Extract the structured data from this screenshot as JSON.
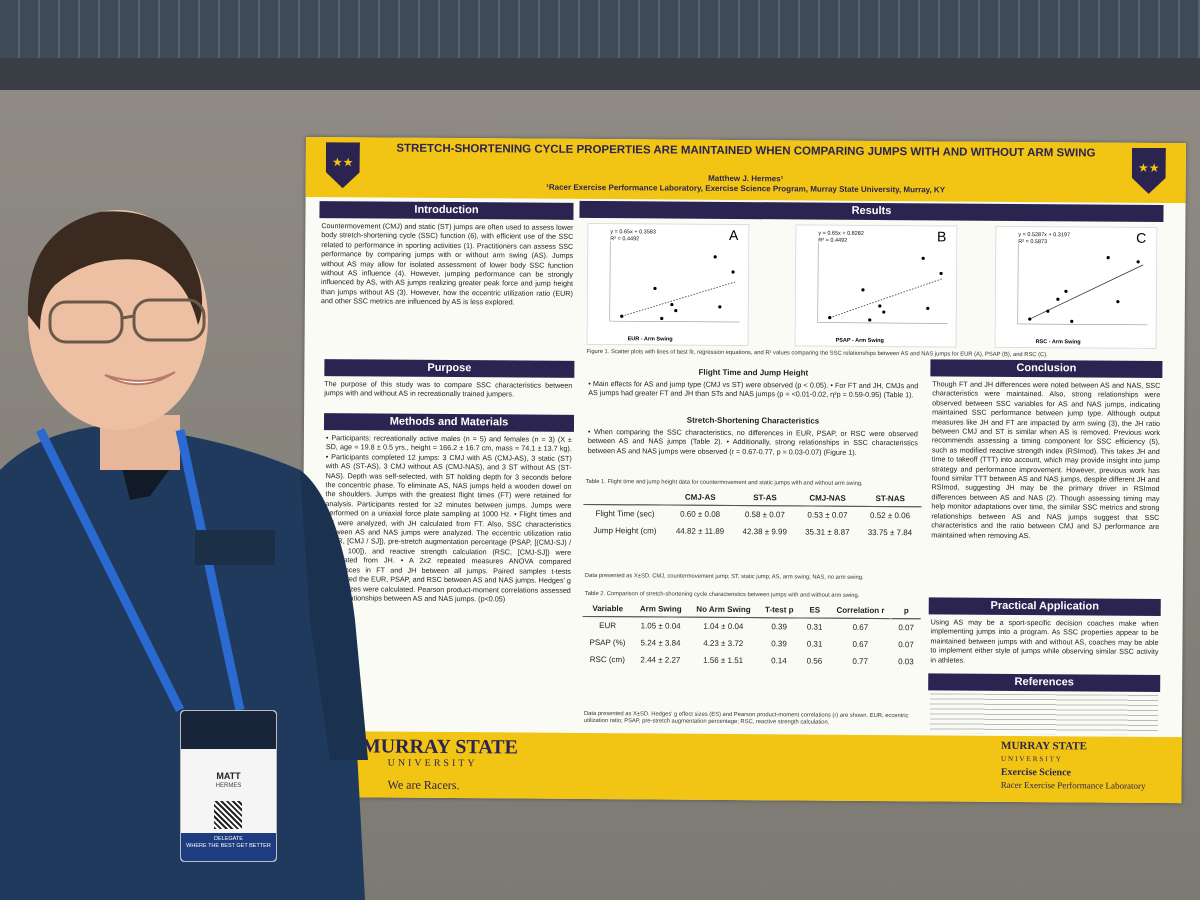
{
  "poster": {
    "title": "STRETCH-SHORTENING CYCLE PROPERTIES ARE MAINTAINED WHEN COMPARING JUMPS WITH AND WITHOUT ARM SWING",
    "author": "Matthew J. Hermes¹",
    "affiliation": "¹Racer Exercise Performance Laboratory, Exercise Science Program, Murray State University, Murray, KY",
    "sections": {
      "introduction": {
        "heading": "Introduction",
        "text": "Countermovement (CMJ) and static (ST) jumps are often used to assess lower body stretch-shortening cycle (SSC) function (6), with efficient use of the SSC related to performance in sporting activities (1). Practitioners can assess SSC performance by comparing jumps with or without arm swing (AS). Jumps without AS may allow for isolated assessment of lower body SSC function without AS influence (4). However, jumping performance can be strongly influenced by AS, with AS jumps realizing greater peak force and jump height than jumps without AS (3). However, how the eccentric utilization ratio (EUR) and other SSC metrics are influenced by AS is less explored."
      },
      "purpose": {
        "heading": "Purpose",
        "text": "The purpose of this study was to compare SSC characteristics between jumps with and without AS in recreationally trained jumpers."
      },
      "methods": {
        "heading": "Methods and Materials",
        "text": "• Participants: recreationally active males (n = 5) and females (n = 3) (X ± SD, age = 19.8 ± 0.5 yrs., height = 166.2 ± 16.7 cm, mass = 74.1 ± 13.7 kg). • Participants completed 12 jumps: 3 CMJ with AS (CMJ-AS), 3 static (ST) with AS (ST-AS), 3 CMJ without AS (CMJ-NAS), and 3 ST without AS (ST-NAS). Depth was self-selected, with ST holding depth for 3 seconds before the concentric phase. To eliminate AS, NAS jumps held a wooden dowel on the shoulders. Jumps with the greatest flight times (FT) were retained for analysis. Participants rested for ≥2 minutes between jumps. Jumps were performed on a uniaxial force plate sampling at 1000 Hz. • Flight times and JH were analyzed, with JH calculated from FT. Also, SSC characteristics between AS and NAS jumps were analyzed. The eccentric utilization ratio (EUR, [CMJ / SJ]), pre-stretch augmentation percentage (PSAP, [(CMJ-SJ) / SJ * 100]), and reactive strength calculation (RSC, [CMJ-SJ]) were calculated from JH. • A 2x2 repeated measures ANOVA compared differences in FT and JH between all jumps. Paired samples t-tests compared the EUR, PSAP, and RSC between AS and NAS jumps. Hedges' g effect sizes were calculated. Pearson product-moment correlations assessed SSC relationships between AS and NAS jumps. (p<0.05)"
      },
      "results": {
        "heading": "Results",
        "plots": [
          {
            "label": "A",
            "eq": "y = 0.65x + 0.3583",
            "r2": "R² = 0.4492",
            "xlabel": "EUR - Arm Swing",
            "ylabel": "EUR - No Arm Swing"
          },
          {
            "label": "B",
            "eq": "y = 0.65x + 0.8282",
            "r2": "R² = 0.4492",
            "xlabel": "PSAP - Arm Swing",
            "ylabel": "PSAP - No Arm Swing"
          },
          {
            "label": "C",
            "eq": "y = 0.5287x + 0.3197",
            "r2": "R² = 0.5873",
            "xlabel": "RSC - Arm Swing",
            "ylabel": "RSC - No Arm Swing"
          }
        ],
        "figure_caption": "Figure 1. Scatter plots with lines of best fit, regression equations, and R² values comparing the SSC relationships between AS and NAS jumps for EUR (A), PSAP (B), and RSC (C).",
        "sub1": "Flight Time and Jump Height",
        "sub1_text": "• Main effects for AS and jump type (CMJ vs ST) were observed (p < 0.05). • For FT and JH, CMJs and AS jumps had greater FT and JH than STs and NAS jumps (p = <0.01-0.02, η²p = 0.59-0.95) (Table 1).",
        "sub2": "Stretch-Shortening Characteristics",
        "sub2_text": "• When comparing the SSC characteristics, no differences in EUR, PSAP, or RSC were observed between AS and NAS jumps (Table 2). • Additionally, strong relationships in SSC characteristics between AS and NAS jumps were observed (r = 0.67-0.77, p = 0.03-0.07) (Figure 1).",
        "table1_caption": "Table 1. Flight time and jump height data for countermovement and static jumps with and without arm swing.",
        "table1_headers": [
          "",
          "CMJ-AS",
          "ST-AS",
          "CMJ-NAS",
          "ST-NAS"
        ],
        "table1_rows": [
          [
            "Flight Time (sec)",
            "0.60 ± 0.08",
            "0.58 ± 0.07",
            "0.53 ± 0.07",
            "0.52 ± 0.06"
          ],
          [
            "Jump Height (cm)",
            "44.82 ± 11.89",
            "42.38 ± 9.99",
            "35.31 ± 8.87",
            "33.75 ± 7.84"
          ]
        ],
        "table1_note": "Data presented as X±SD. CMJ, countermovement jump; ST, static jump; AS, arm swing; NAS, no arm swing.",
        "table2_caption": "Table 2. Comparison of stretch-shortening cycle characteristics between jumps with and without arm swing.",
        "table2_headers": [
          "Variable",
          "Arm Swing",
          "No Arm Swing",
          "T-test p",
          "ES",
          "Correlation r",
          "p"
        ],
        "table2_rows": [
          [
            "EUR",
            "1.05 ± 0.04",
            "1.04 ± 0.04",
            "0.39",
            "0.31",
            "0.67",
            "0.07"
          ],
          [
            "PSAP (%)",
            "5.24 ± 3.84",
            "4.23 ± 3.72",
            "0.39",
            "0.31",
            "0.67",
            "0.07"
          ],
          [
            "RSC (cm)",
            "2.44 ± 2.27",
            "1.56 ± 1.51",
            "0.14",
            "0.56",
            "0.77",
            "0.03"
          ]
        ],
        "table2_note": "Data presented as X±SD. Hedges' g effect sizes (ES) and Pearson product-moment correlations (r) are shown. EUR, eccentric utilization ratio; PSAP, pre-stretch augmentation percentage; RSC, reactive strength calculation."
      },
      "conclusion": {
        "heading": "Conclusion",
        "text": "Though FT and JH differences were noted between AS and NAS, SSC characteristics were maintained. Also, strong relationships were observed between SSC variables for AS and NAS jumps, indicating maintained SSC performance between jump type. Although output measures like JH and FT are impacted by arm swing (3), the JH ratio between CMJ and ST is similar when AS is removed. Previous work recommends assessing a timing component for SSC efficiency (5), such as modified reactive strength index (RSImod). This takes JH and time to takeoff (TTT) into account, which may provide insight into jump strategy and performance improvement. However, previous work has found similar TTT between AS and NAS jumps, despite different JH and RSImod, suggesting JH may be the primary driver in RSImod differences between AS and NAS (2). Though assessing timing may help monitor adaptations over time, the similar SSC metrics and strong relationships between AS and NAS jumps suggest that SSC characteristics and the ratio between CMJ and SJ performance are maintained when removing AS."
      },
      "practical": {
        "heading": "Practical Application",
        "text": "Using AS may be a sport-specific decision coaches make when implementing jumps into a program. As SSC properties appear to be maintained between jumps with and without AS, coaches may be able to implement either style of jumps while observing similar SSC activity in athletes."
      },
      "references": {
        "heading": "References"
      }
    },
    "footer": {
      "logo": "MURRAY STATE",
      "university": "UNIVERSITY",
      "tagline": "We are Racers.",
      "right_logo": "MURRAY STATE",
      "right_univ": "UNIVERSITY",
      "program": "Exercise Science",
      "lab": "Racer Exercise Performance Laboratory"
    }
  },
  "badge": {
    "name": "MATT",
    "surname": "HERMES",
    "role": "DELEGATE",
    "slogan": "WHERE THE BEST GET BETTER"
  }
}
